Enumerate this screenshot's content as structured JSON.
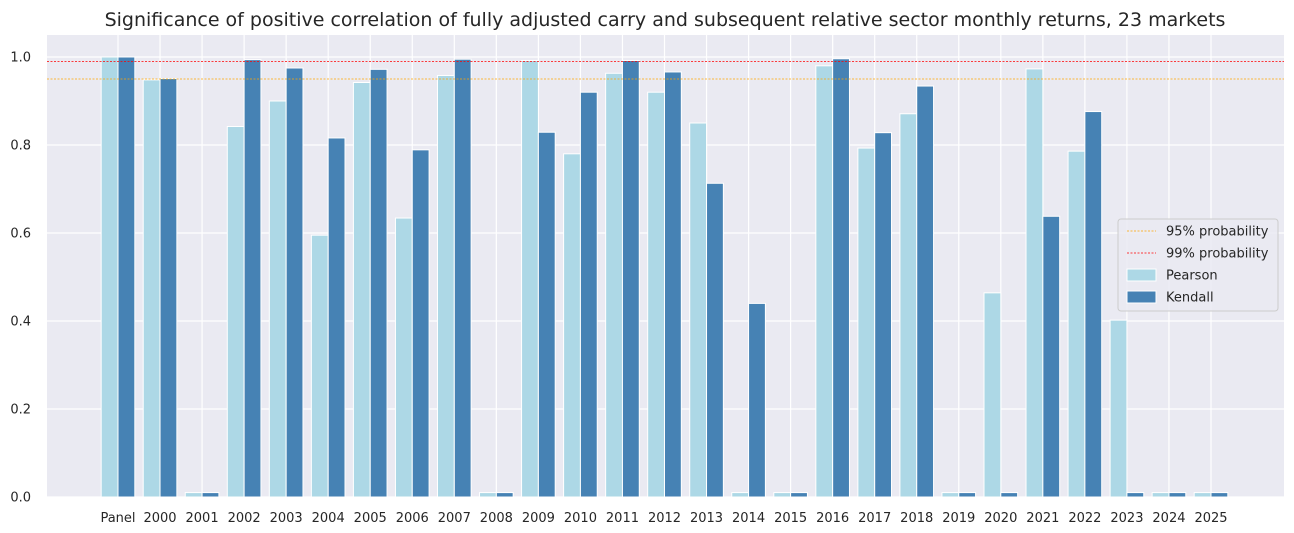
{
  "chart_data": {
    "type": "bar",
    "title": "Significance of positive correlation of fully adjusted carry and subsequent relative sector monthly returns, 23 markets",
    "xlabel": "",
    "ylabel": "",
    "ylim": [
      0,
      1.05
    ],
    "yticks": [
      "0.0",
      "0.2",
      "0.4",
      "0.6",
      "0.8",
      "1.0"
    ],
    "grid": true,
    "legend_position": "center-right",
    "categories": [
      "Panel",
      "2000",
      "2001",
      "2002",
      "2003",
      "2004",
      "2005",
      "2006",
      "2007",
      "2008",
      "2009",
      "2010",
      "2011",
      "2012",
      "2013",
      "2014",
      "2015",
      "2016",
      "2017",
      "2018",
      "2019",
      "2020",
      "2021",
      "2022",
      "2023",
      "2024",
      "2025"
    ],
    "series": [
      {
        "name": "Pearson",
        "color": "#add8e6",
        "values": [
          1.0,
          0.948,
          0.01,
          0.842,
          0.9,
          0.595,
          0.942,
          0.634,
          0.958,
          0.01,
          0.992,
          0.78,
          0.963,
          0.92,
          0.85,
          0.01,
          0.01,
          0.98,
          0.793,
          0.871,
          0.01,
          0.464,
          0.973,
          0.786,
          0.402,
          0.01,
          0.01
        ]
      },
      {
        "name": "Kendall",
        "color": "#4682b4",
        "values": [
          1.0,
          0.951,
          0.01,
          0.994,
          0.975,
          0.816,
          0.972,
          0.789,
          0.995,
          0.01,
          0.829,
          0.92,
          0.992,
          0.966,
          0.713,
          0.44,
          0.01,
          0.996,
          0.828,
          0.934,
          0.01,
          0.01,
          0.638,
          0.876,
          0.01,
          0.01,
          0.01
        ]
      }
    ],
    "reference_lines": [
      {
        "name": "95% probability",
        "value": 0.95,
        "color": "#ffa500"
      },
      {
        "name": "99% probability",
        "value": 0.99,
        "color": "#ff0000"
      }
    ]
  }
}
